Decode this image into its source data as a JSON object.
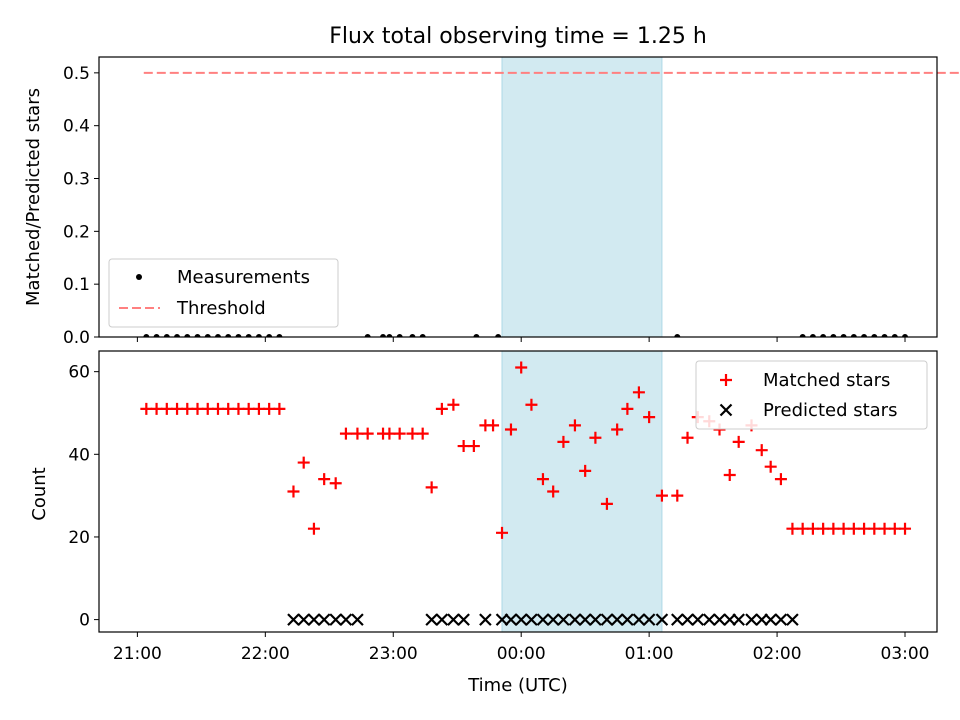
{
  "chart_data": [
    {
      "type": "scatter",
      "title": "Flux total observing time = 1.25 h",
      "xlabel": "",
      "ylabel": "Matched/Predicted stars",
      "ylim": [
        0,
        0.53
      ],
      "yticks": [
        "0.0",
        "0.1",
        "0.2",
        "0.3",
        "0.4",
        "0.5"
      ],
      "threshold": 0.5,
      "threshold_x": [
        21.05,
        28.95
      ],
      "shaded_span": [
        23.85,
        25.1
      ],
      "legend": {
        "position": "lower-left",
        "entries": [
          {
            "label": "Measurements",
            "marker": "dot",
            "color": "#000000"
          },
          {
            "label": "Threshold",
            "marker": "dashed-line",
            "color": "#ff8080"
          }
        ]
      },
      "series": [
        {
          "name": "Measurements",
          "x": [
            21.07,
            21.15,
            21.23,
            21.31,
            21.39,
            21.47,
            21.55,
            21.63,
            21.71,
            21.79,
            21.87,
            21.95,
            22.03,
            22.11,
            22.8,
            22.92,
            22.97,
            23.05,
            23.15,
            23.23,
            23.65,
            23.82,
            25.22,
            26.2,
            26.28,
            26.36,
            26.44,
            26.52,
            26.6,
            26.68,
            26.76,
            26.84,
            26.92,
            27.0
          ],
          "y": [
            0,
            0,
            0,
            0,
            0,
            0,
            0,
            0,
            0,
            0,
            0,
            0,
            0,
            0,
            0,
            0,
            0,
            0,
            0,
            0,
            0,
            0,
            0,
            0,
            0,
            0,
            0,
            0,
            0,
            0,
            0,
            0,
            0,
            0
          ]
        }
      ]
    },
    {
      "type": "scatter",
      "title": "",
      "xlabel": "Time (UTC)",
      "ylabel": "Count",
      "ylim": [
        -3,
        65
      ],
      "yticks": [
        "0",
        "20",
        "40",
        "60"
      ],
      "xlim": [
        20.7,
        27.25
      ],
      "xticks": [
        "21:00",
        "22:00",
        "23:00",
        "00:00",
        "01:00",
        "02:00",
        "03:00"
      ],
      "shaded_span": [
        23.85,
        25.1
      ],
      "legend": {
        "position": "upper-right",
        "entries": [
          {
            "label": "Matched stars",
            "marker": "plus",
            "color": "#ff0000"
          },
          {
            "label": "Predicted stars",
            "marker": "x",
            "color": "#000000"
          }
        ]
      },
      "series": [
        {
          "name": "Matched stars",
          "x": [
            21.07,
            21.15,
            21.23,
            21.31,
            21.39,
            21.47,
            21.55,
            21.63,
            21.71,
            21.79,
            21.87,
            21.95,
            22.03,
            22.11,
            22.22,
            22.3,
            22.38,
            22.46,
            22.55,
            22.63,
            22.72,
            22.8,
            22.92,
            22.97,
            23.05,
            23.15,
            23.23,
            23.3,
            23.38,
            23.47,
            23.55,
            23.63,
            23.72,
            23.78,
            23.85,
            23.92,
            24.0,
            24.08,
            24.17,
            24.25,
            24.33,
            24.42,
            24.5,
            24.58,
            24.67,
            24.75,
            24.83,
            24.92,
            25.0,
            25.1,
            25.22,
            25.3,
            25.38,
            25.47,
            25.55,
            25.63,
            25.7,
            25.8,
            25.88,
            25.95,
            26.03,
            26.12,
            26.2,
            26.28,
            26.36,
            26.44,
            26.52,
            26.6,
            26.68,
            26.76,
            26.84,
            26.92,
            27.0
          ],
          "y": [
            51,
            51,
            51,
            51,
            51,
            51,
            51,
            51,
            51,
            51,
            51,
            51,
            51,
            51,
            31,
            38,
            22,
            34,
            33,
            45,
            45,
            45,
            45,
            45,
            45,
            45,
            45,
            32,
            51,
            52,
            42,
            42,
            47,
            47,
            21,
            46,
            61,
            52,
            34,
            31,
            43,
            47,
            36,
            44,
            28,
            46,
            51,
            55,
            49,
            30,
            30,
            44,
            49,
            48,
            46,
            35,
            43,
            47,
            41,
            37,
            34,
            22,
            22,
            22,
            22,
            22,
            22,
            22,
            22,
            22,
            22,
            22,
            22
          ]
        },
        {
          "name": "Predicted stars",
          "x": [
            22.22,
            22.3,
            22.38,
            22.46,
            22.55,
            22.63,
            22.72,
            23.3,
            23.38,
            23.47,
            23.55,
            23.72,
            23.85,
            23.92,
            24.0,
            24.08,
            24.17,
            24.25,
            24.33,
            24.42,
            24.5,
            24.58,
            24.67,
            24.75,
            24.83,
            24.92,
            25.0,
            25.1,
            25.22,
            25.3,
            25.38,
            25.47,
            25.55,
            25.63,
            25.7,
            25.8,
            25.88,
            25.95,
            26.03,
            26.12
          ],
          "y": [
            0,
            0,
            0,
            0,
            0,
            0,
            0,
            0,
            0,
            0,
            0,
            0,
            0,
            0,
            0,
            0,
            0,
            0,
            0,
            0,
            0,
            0,
            0,
            0,
            0,
            0,
            0,
            0,
            0,
            0,
            0,
            0,
            0,
            0,
            0,
            0,
            0,
            0,
            0,
            0
          ]
        }
      ]
    }
  ],
  "colors": {
    "shade": "#add8e6",
    "matched": "#ff0000",
    "predicted": "#000000",
    "threshold": "#ff8080",
    "measurements": "#000000"
  }
}
